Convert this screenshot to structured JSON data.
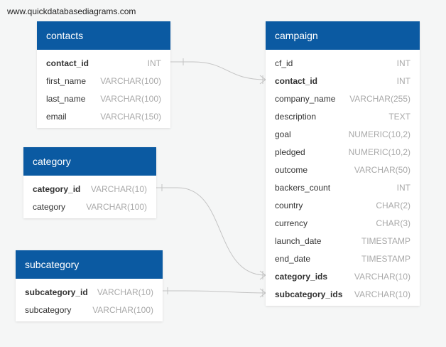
{
  "site": "www.quickdatabasediagrams.com",
  "tables": {
    "contacts": {
      "title": "contacts",
      "fields": [
        {
          "name": "contact_id",
          "type": "INT",
          "bold": true
        },
        {
          "name": "first_name",
          "type": "VARCHAR(100)",
          "bold": false
        },
        {
          "name": "last_name",
          "type": "VARCHAR(100)",
          "bold": false
        },
        {
          "name": "email",
          "type": "VARCHAR(150)",
          "bold": false
        }
      ]
    },
    "category": {
      "title": "category",
      "fields": [
        {
          "name": "category_id",
          "type": "VARCHAR(10)",
          "bold": true
        },
        {
          "name": "category",
          "type": "VARCHAR(100)",
          "bold": false
        }
      ]
    },
    "subcategory": {
      "title": "subcategory",
      "fields": [
        {
          "name": "subcategory_id",
          "type": "VARCHAR(10)",
          "bold": true
        },
        {
          "name": "subcategory",
          "type": "VARCHAR(100)",
          "bold": false
        }
      ]
    },
    "campaign": {
      "title": "campaign",
      "fields": [
        {
          "name": "cf_id",
          "type": "INT",
          "bold": false
        },
        {
          "name": "contact_id",
          "type": "INT",
          "bold": true
        },
        {
          "name": "company_name",
          "type": "VARCHAR(255)",
          "bold": false
        },
        {
          "name": "description",
          "type": "TEXT",
          "bold": false
        },
        {
          "name": "goal",
          "type": "NUMERIC(10,2)",
          "bold": false
        },
        {
          "name": "pledged",
          "type": "NUMERIC(10,2)",
          "bold": false
        },
        {
          "name": "outcome",
          "type": "VARCHAR(50)",
          "bold": false
        },
        {
          "name": "backers_count",
          "type": "INT",
          "bold": false
        },
        {
          "name": "country",
          "type": "CHAR(2)",
          "bold": false
        },
        {
          "name": "currency",
          "type": "CHAR(3)",
          "bold": false
        },
        {
          "name": "launch_date",
          "type": "TIMESTAMP",
          "bold": false
        },
        {
          "name": "end_date",
          "type": "TIMESTAMP",
          "bold": false
        },
        {
          "name": "category_ids",
          "type": "VARCHAR(10)",
          "bold": true
        },
        {
          "name": "subcategory_ids",
          "type": "VARCHAR(10)",
          "bold": true
        }
      ]
    }
  },
  "colors": {
    "header": "#0b5aa2",
    "link": "#c4c4c4"
  }
}
